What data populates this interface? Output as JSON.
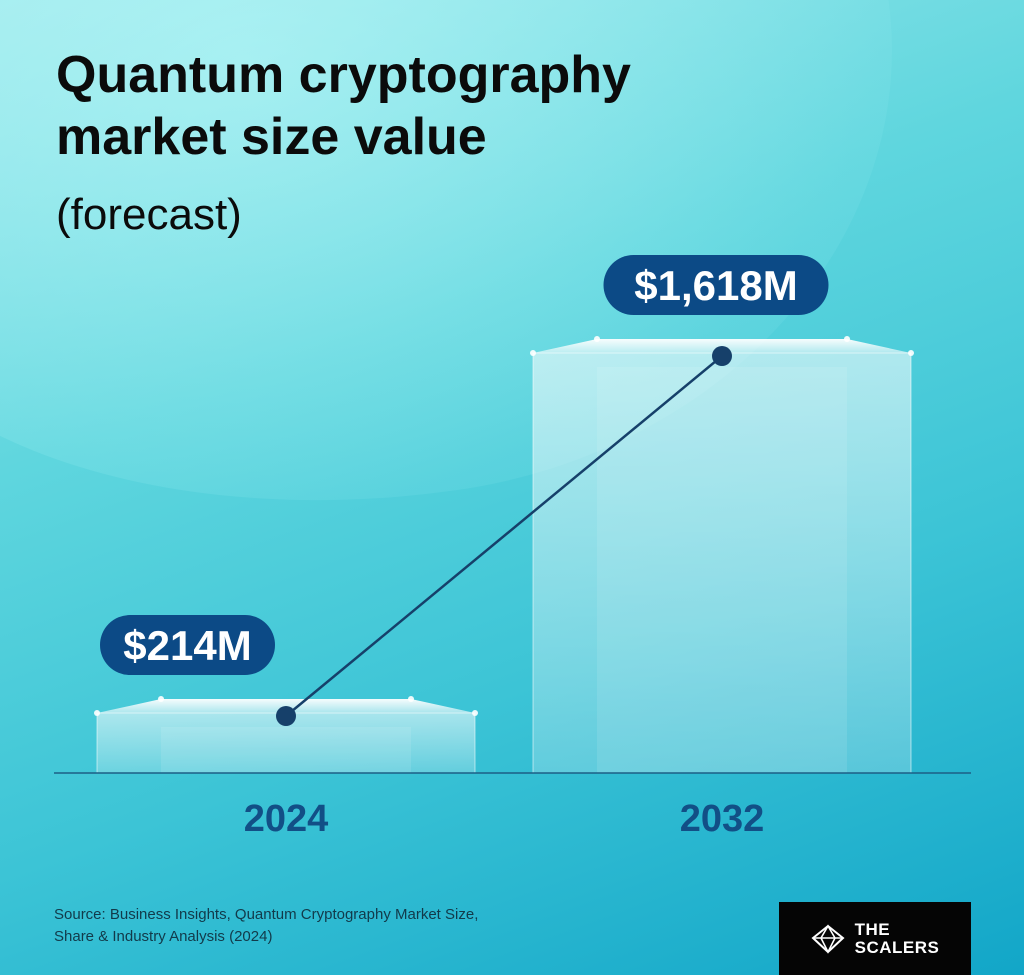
{
  "title_lines": [
    "Quantum cryptography",
    "market size value"
  ],
  "subtitle": "(forecast)",
  "source_lines": [
    "Source: Business Insights, Quantum Cryptography Market Size,",
    "Share & Industry Analysis (2024)"
  ],
  "logo": {
    "line1": "THE",
    "line2": "SCALERS",
    "icon": "diamond-logo-icon"
  },
  "colors": {
    "label_pill": "#0c4a86",
    "line": "#16406a",
    "year_text": "#124f86"
  },
  "chart_data": {
    "type": "bar",
    "categories": [
      "2024",
      "2032"
    ],
    "values": [
      214,
      1618
    ],
    "data_labels": [
      "$214M",
      "$1,618M"
    ],
    "unit": "USD millions",
    "overlay_line": true,
    "title": "Quantum cryptography market size value",
    "subtitle": "(forecast)",
    "xlabel": "",
    "ylabel": "",
    "grid": false,
    "legend": "none"
  }
}
